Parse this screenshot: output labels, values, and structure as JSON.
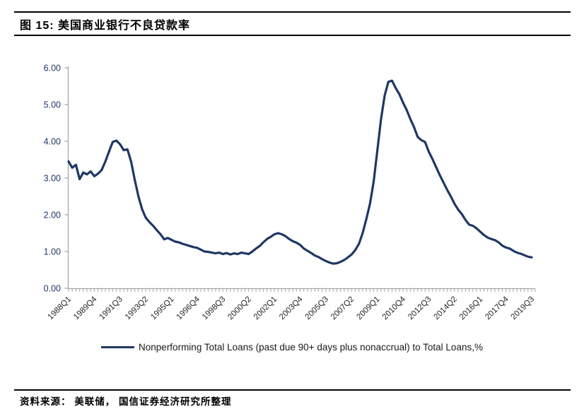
{
  "figure": {
    "title": "图 15:  美国商业银行不良贷款率"
  },
  "source": {
    "text": "资料来源： 美联储， 国信证券经济研究所整理"
  },
  "colors": {
    "line": "#1F3864",
    "axis": "#A6A6A6",
    "y_label": "#1F3864",
    "x_label": "#262626",
    "rule": "#000000"
  },
  "chart_data": {
    "type": "line",
    "title": "美国商业银行不良贷款率",
    "xlabel": "",
    "ylabel": "",
    "ylim": [
      0,
      6
    ],
    "grid": false,
    "legend_position": "bottom",
    "frequency": "quarterly",
    "x_range": [
      "1988Q1",
      "2019Q3"
    ],
    "y_ticks": [
      "6.00",
      "5.00",
      "4.00",
      "3.00",
      "2.00",
      "1.00",
      "0.00"
    ],
    "x_tick_labels": [
      "1988Q1",
      "1989Q4",
      "1991Q3",
      "1993Q2",
      "1995Q1",
      "1996Q4",
      "1998Q3",
      "2000Q2",
      "2002Q1",
      "2003Q4",
      "2005Q3",
      "2007Q2",
      "2009Q1",
      "2010Q4",
      "2012Q3",
      "2014Q2",
      "2016Q1",
      "2017Q4",
      "2019Q3"
    ],
    "x_label_every": 7,
    "series": [
      {
        "name": "Nonperforming Total Loans (past due 90+ days plus nonaccrual) to Total Loans,%",
        "values": [
          3.45,
          3.28,
          3.36,
          2.97,
          3.15,
          3.1,
          3.18,
          3.05,
          3.12,
          3.22,
          3.45,
          3.72,
          3.98,
          4.02,
          3.92,
          3.76,
          3.78,
          3.45,
          2.95,
          2.5,
          2.15,
          1.92,
          1.8,
          1.7,
          1.58,
          1.47,
          1.33,
          1.37,
          1.32,
          1.27,
          1.25,
          1.21,
          1.18,
          1.15,
          1.12,
          1.1,
          1.05,
          1.0,
          0.99,
          0.97,
          0.95,
          0.97,
          0.93,
          0.96,
          0.92,
          0.95,
          0.93,
          0.97,
          0.95,
          0.93,
          1.0,
          1.08,
          1.15,
          1.25,
          1.34,
          1.4,
          1.47,
          1.5,
          1.47,
          1.42,
          1.34,
          1.28,
          1.24,
          1.18,
          1.08,
          1.02,
          0.96,
          0.89,
          0.85,
          0.79,
          0.74,
          0.7,
          0.67,
          0.68,
          0.72,
          0.77,
          0.84,
          0.92,
          1.04,
          1.21,
          1.5,
          1.88,
          2.3,
          2.9,
          3.75,
          4.6,
          5.25,
          5.62,
          5.65,
          5.45,
          5.28,
          5.05,
          4.85,
          4.6,
          4.38,
          4.12,
          4.03,
          3.98,
          3.72,
          3.52,
          3.3,
          3.08,
          2.88,
          2.68,
          2.5,
          2.3,
          2.14,
          2.02,
          1.86,
          1.73,
          1.7,
          1.63,
          1.54,
          1.45,
          1.38,
          1.34,
          1.31,
          1.25,
          1.16,
          1.11,
          1.08,
          1.02,
          0.97,
          0.94,
          0.9,
          0.86,
          0.84
        ]
      }
    ]
  }
}
